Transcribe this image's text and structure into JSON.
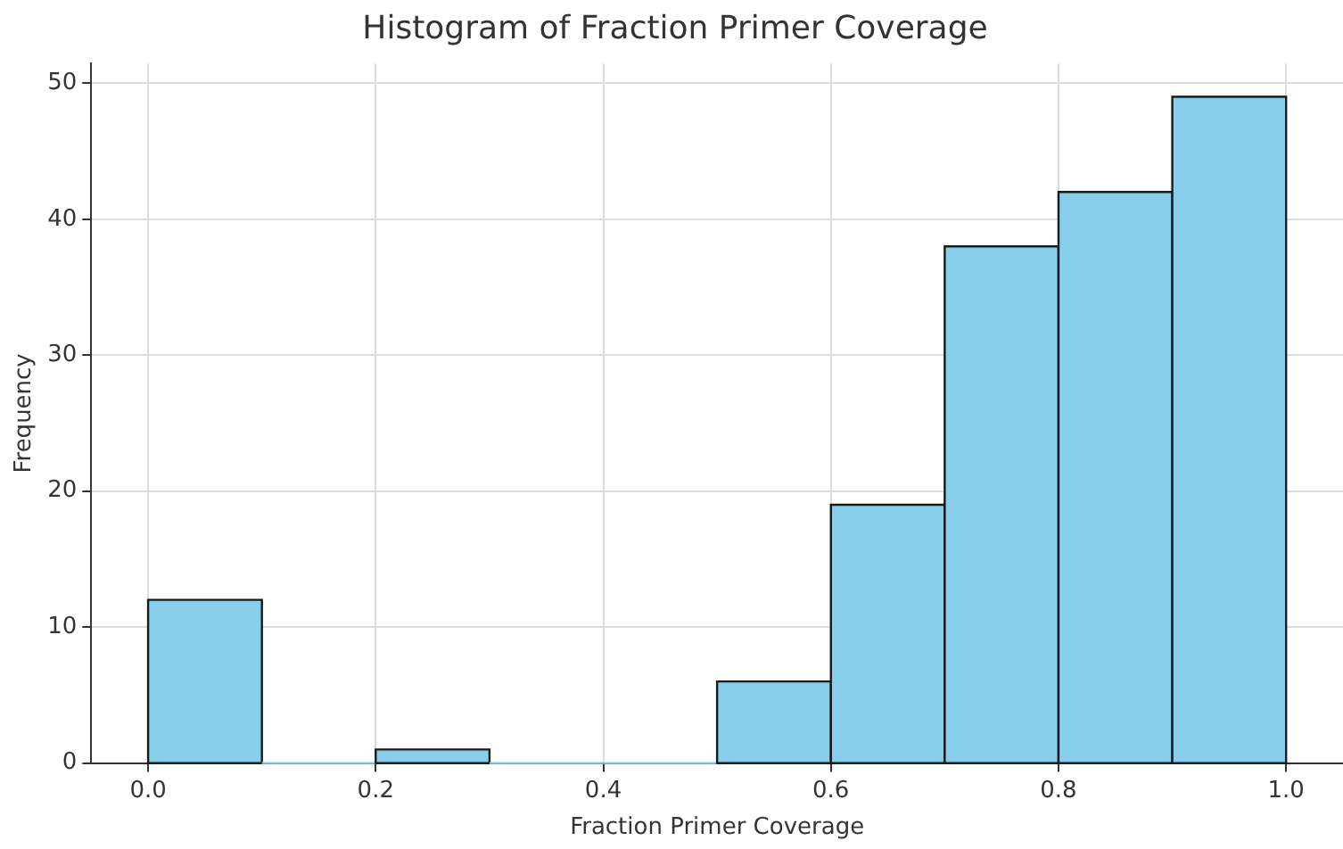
{
  "chart_data": {
    "type": "histogram",
    "title": "Histogram of Fraction Primer Coverage",
    "xlabel": "Fraction Primer Coverage",
    "ylabel": "Frequency",
    "bins": [
      0.0,
      0.1,
      0.2,
      0.3,
      0.4,
      0.5,
      0.6,
      0.7,
      0.8,
      0.9,
      1.0
    ],
    "values": [
      12,
      0,
      1,
      0,
      0,
      6,
      19,
      38,
      42,
      49
    ],
    "color": "#87ceeb",
    "xlim": [
      -0.05,
      1.05
    ],
    "xticks": [
      {
        "value": 0,
        "label": "0.0"
      },
      0.2,
      0.4,
      0.6,
      0.8,
      {
        "value": 1,
        "label": "1.0"
      }
    ],
    "ylim": [
      0,
      51.45
    ],
    "yticks": [
      0,
      10,
      20,
      30,
      40,
      50
    ],
    "grid": true,
    "legend": false
  }
}
